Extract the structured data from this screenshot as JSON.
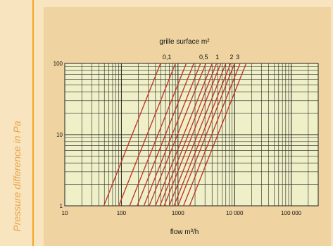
{
  "side_label": "Pressure difference in Pa",
  "colors": {
    "background": "#f8e4bf",
    "panel": "#efd4a2",
    "plot_area": "#f0f0c8",
    "grid": "#222222",
    "curve": "#c0392b",
    "accent_rule": "#f5a623"
  },
  "chart_data": {
    "type": "line",
    "title": "grille surface m²",
    "xlabel": "flow m³/h",
    "ylabel": "Pressure difference in Pa",
    "xscale": "log",
    "yscale": "log",
    "xlim": [
      10,
      300000
    ],
    "ylim": [
      1,
      100
    ],
    "xticks": [
      {
        "value": 10,
        "label": "10"
      },
      {
        "value": 100,
        "label": "100"
      },
      {
        "value": 1000,
        "label": "1000"
      },
      {
        "value": 10000,
        "label": "10 000"
      },
      {
        "value": 100000,
        "label": "100 000"
      }
    ],
    "yticks": [
      {
        "value": 1,
        "label": "1"
      },
      {
        "value": 10,
        "label": "10"
      },
      {
        "value": 100,
        "label": "100"
      }
    ],
    "grid": true,
    "series": [
      {
        "label": "",
        "x": [
          49,
          490
        ],
        "y": [
          1,
          100
        ]
      },
      {
        "label": "0,1",
        "x": [
          90,
          900
        ],
        "y": [
          1,
          100
        ]
      },
      {
        "label": "",
        "x": [
          140,
          1400
        ],
        "y": [
          1,
          100
        ]
      },
      {
        "label": "",
        "x": [
          190,
          1900
        ],
        "y": [
          1,
          100
        ]
      },
      {
        "label": "",
        "x": [
          250,
          2500
        ],
        "y": [
          1,
          100
        ]
      },
      {
        "label": "",
        "x": [
          310,
          3100
        ],
        "y": [
          1,
          100
        ]
      },
      {
        "label": "0,5",
        "x": [
          400,
          4000
        ],
        "y": [
          1,
          100
        ]
      },
      {
        "label": "",
        "x": [
          480,
          4800
        ],
        "y": [
          1,
          100
        ]
      },
      {
        "label": "",
        "x": [
          570,
          5700
        ],
        "y": [
          1,
          100
        ]
      },
      {
        "label": "1",
        "x": [
          700,
          7000
        ],
        "y": [
          1,
          100
        ]
      },
      {
        "label": "",
        "x": [
          850,
          8500
        ],
        "y": [
          1,
          100
        ]
      },
      {
        "label": "",
        "x": [
          1000,
          10000
        ],
        "y": [
          1,
          100
        ]
      },
      {
        "label": "2",
        "x": [
          1250,
          12500
        ],
        "y": [
          1,
          100
        ]
      },
      {
        "label": "3",
        "x": [
          1600,
          16000
        ],
        "y": [
          1,
          100
        ]
      }
    ]
  }
}
